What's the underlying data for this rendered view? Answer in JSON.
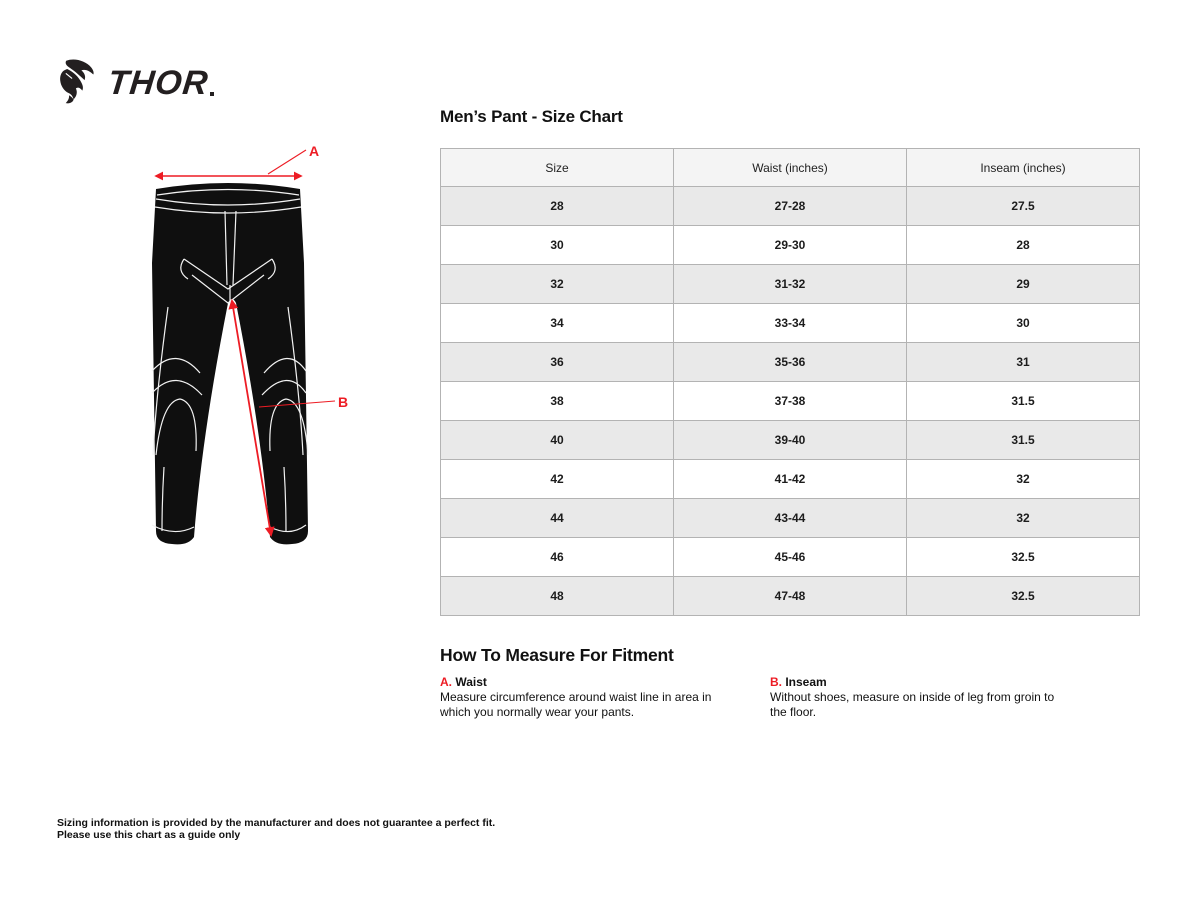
{
  "brand": {
    "name": "THOR",
    "icon": "thor-goat-icon"
  },
  "colors": {
    "accent_red": "#ed1c24",
    "row_stripe": "#e9e9e9",
    "header_bg": "#f4f4f4",
    "table_border": "#b3b3b3"
  },
  "diagram": {
    "label_a": "A",
    "label_b": "B"
  },
  "size_chart": {
    "title": "Men’s Pant - Size Chart",
    "columns": [
      "Size",
      "Waist (inches)",
      "Inseam (inches)"
    ],
    "rows": [
      [
        "28",
        "27-28",
        "27.5"
      ],
      [
        "30",
        "29-30",
        "28"
      ],
      [
        "32",
        "31-32",
        "29"
      ],
      [
        "34",
        "33-34",
        "30"
      ],
      [
        "36",
        "35-36",
        "31"
      ],
      [
        "38",
        "37-38",
        "31.5"
      ],
      [
        "40",
        "39-40",
        "31.5"
      ],
      [
        "42",
        "41-42",
        "32"
      ],
      [
        "44",
        "43-44",
        "32"
      ],
      [
        "46",
        "45-46",
        "32.5"
      ],
      [
        "48",
        "47-48",
        "32.5"
      ]
    ]
  },
  "how_to_measure": {
    "title": "How To Measure For Fitment",
    "items": [
      {
        "letter": "A.",
        "name": "Waist",
        "description": "Measure circumference around waist line in area in which you normally wear your pants."
      },
      {
        "letter": "B.",
        "name": "Inseam",
        "description": "Without shoes, measure on inside of leg from groin to the floor."
      }
    ]
  },
  "footer": {
    "line1": "Sizing information is provided by the manufacturer and does not guarantee a perfect fit.",
    "line2": "Please use this chart as a guide only"
  }
}
